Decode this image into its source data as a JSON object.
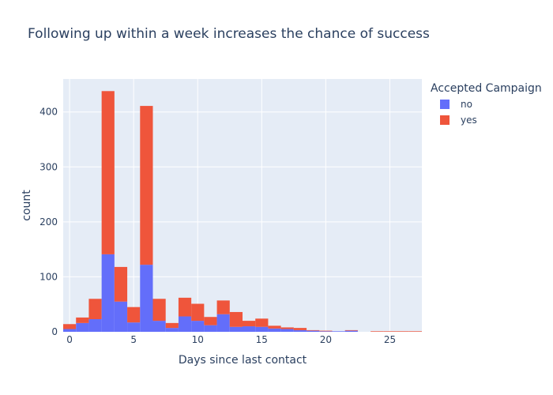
{
  "chart_data": {
    "type": "bar",
    "barmode": "stack",
    "title": "Following up within a week increases the chance of success",
    "xlabel": "Days since last contact",
    "ylabel": "count",
    "bin_width": 1,
    "x": [
      0,
      1,
      2,
      3,
      4,
      5,
      6,
      7,
      8,
      9,
      10,
      11,
      12,
      13,
      14,
      15,
      16,
      17,
      18,
      19,
      20,
      21,
      22,
      23,
      24,
      25,
      26,
      27
    ],
    "series": [
      {
        "name": "no",
        "color": "#636efa",
        "values": [
          5,
          16,
          23,
          141,
          55,
          17,
          122,
          20,
          7,
          28,
          20,
          12,
          32,
          9,
          10,
          9,
          6,
          5,
          3,
          2,
          1,
          1,
          2,
          0,
          0,
          0,
          0,
          0
        ]
      },
      {
        "name": "yes",
        "color": "#ef553b",
        "values": [
          9,
          10,
          37,
          297,
          63,
          28,
          289,
          40,
          9,
          34,
          31,
          15,
          25,
          27,
          10,
          15,
          5,
          3,
          4,
          1,
          1,
          0,
          1,
          0,
          1,
          1,
          1,
          1
        ]
      }
    ],
    "xlim": [
      -0.5,
      27.5
    ],
    "ylim": [
      0,
      460
    ],
    "xticks": [
      0,
      5,
      10,
      15,
      20,
      25
    ],
    "yticks": [
      0,
      100,
      200,
      300,
      400
    ],
    "grid": true,
    "legend": {
      "title": "Accepted Campaign",
      "position": "right"
    }
  }
}
